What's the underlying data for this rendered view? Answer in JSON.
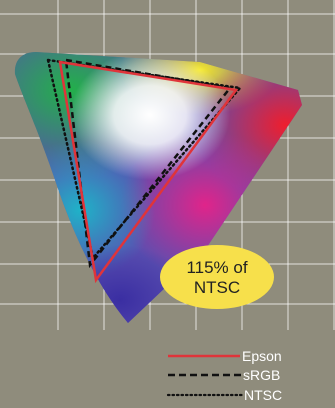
{
  "badge": {
    "line1": "115% of",
    "line2": "NTSC",
    "color": "#f7e04b"
  },
  "legend": [
    {
      "label": "Epson",
      "style": "solid",
      "color": "#e0343a"
    },
    {
      "label": "sRGB",
      "style": "dashed",
      "color": "#111111"
    },
    {
      "label": "NTSC",
      "style": "dotted",
      "color": "#111111"
    }
  ],
  "colors": {
    "background": "#8f8c7c",
    "grid": "#ffffff"
  }
}
